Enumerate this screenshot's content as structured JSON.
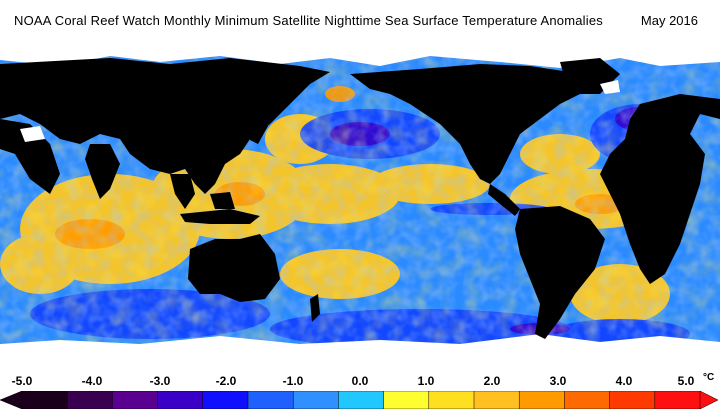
{
  "header": {
    "title": "NOAA Coral Reef Watch Monthly Minimum Satellite Nighttime Sea Surface Temperature Anomalies",
    "date": "May 2016"
  },
  "legend": {
    "labels": [
      "-5.0",
      "-4.0",
      "-3.0",
      "-2.0",
      "-1.0",
      "0.0",
      "1.0",
      "2.0",
      "3.0",
      "4.0",
      "5.0"
    ],
    "unit": "°C",
    "colors": [
      "#1a001a",
      "#3a0050",
      "#5a0090",
      "#3a00c8",
      "#1010ff",
      "#2060ff",
      "#3090ff",
      "#20c8ff",
      "#ffff30",
      "#ffe020",
      "#ffc020",
      "#ff9a00",
      "#ff6a00",
      "#ff3a00",
      "#ff1010"
    ]
  },
  "map": {
    "ocean_base_color": "#2a8aff",
    "land_color": "#000000",
    "ice_color": "#ffffff",
    "warm_color": "#ffc820",
    "cool_color": "#1040ff"
  }
}
